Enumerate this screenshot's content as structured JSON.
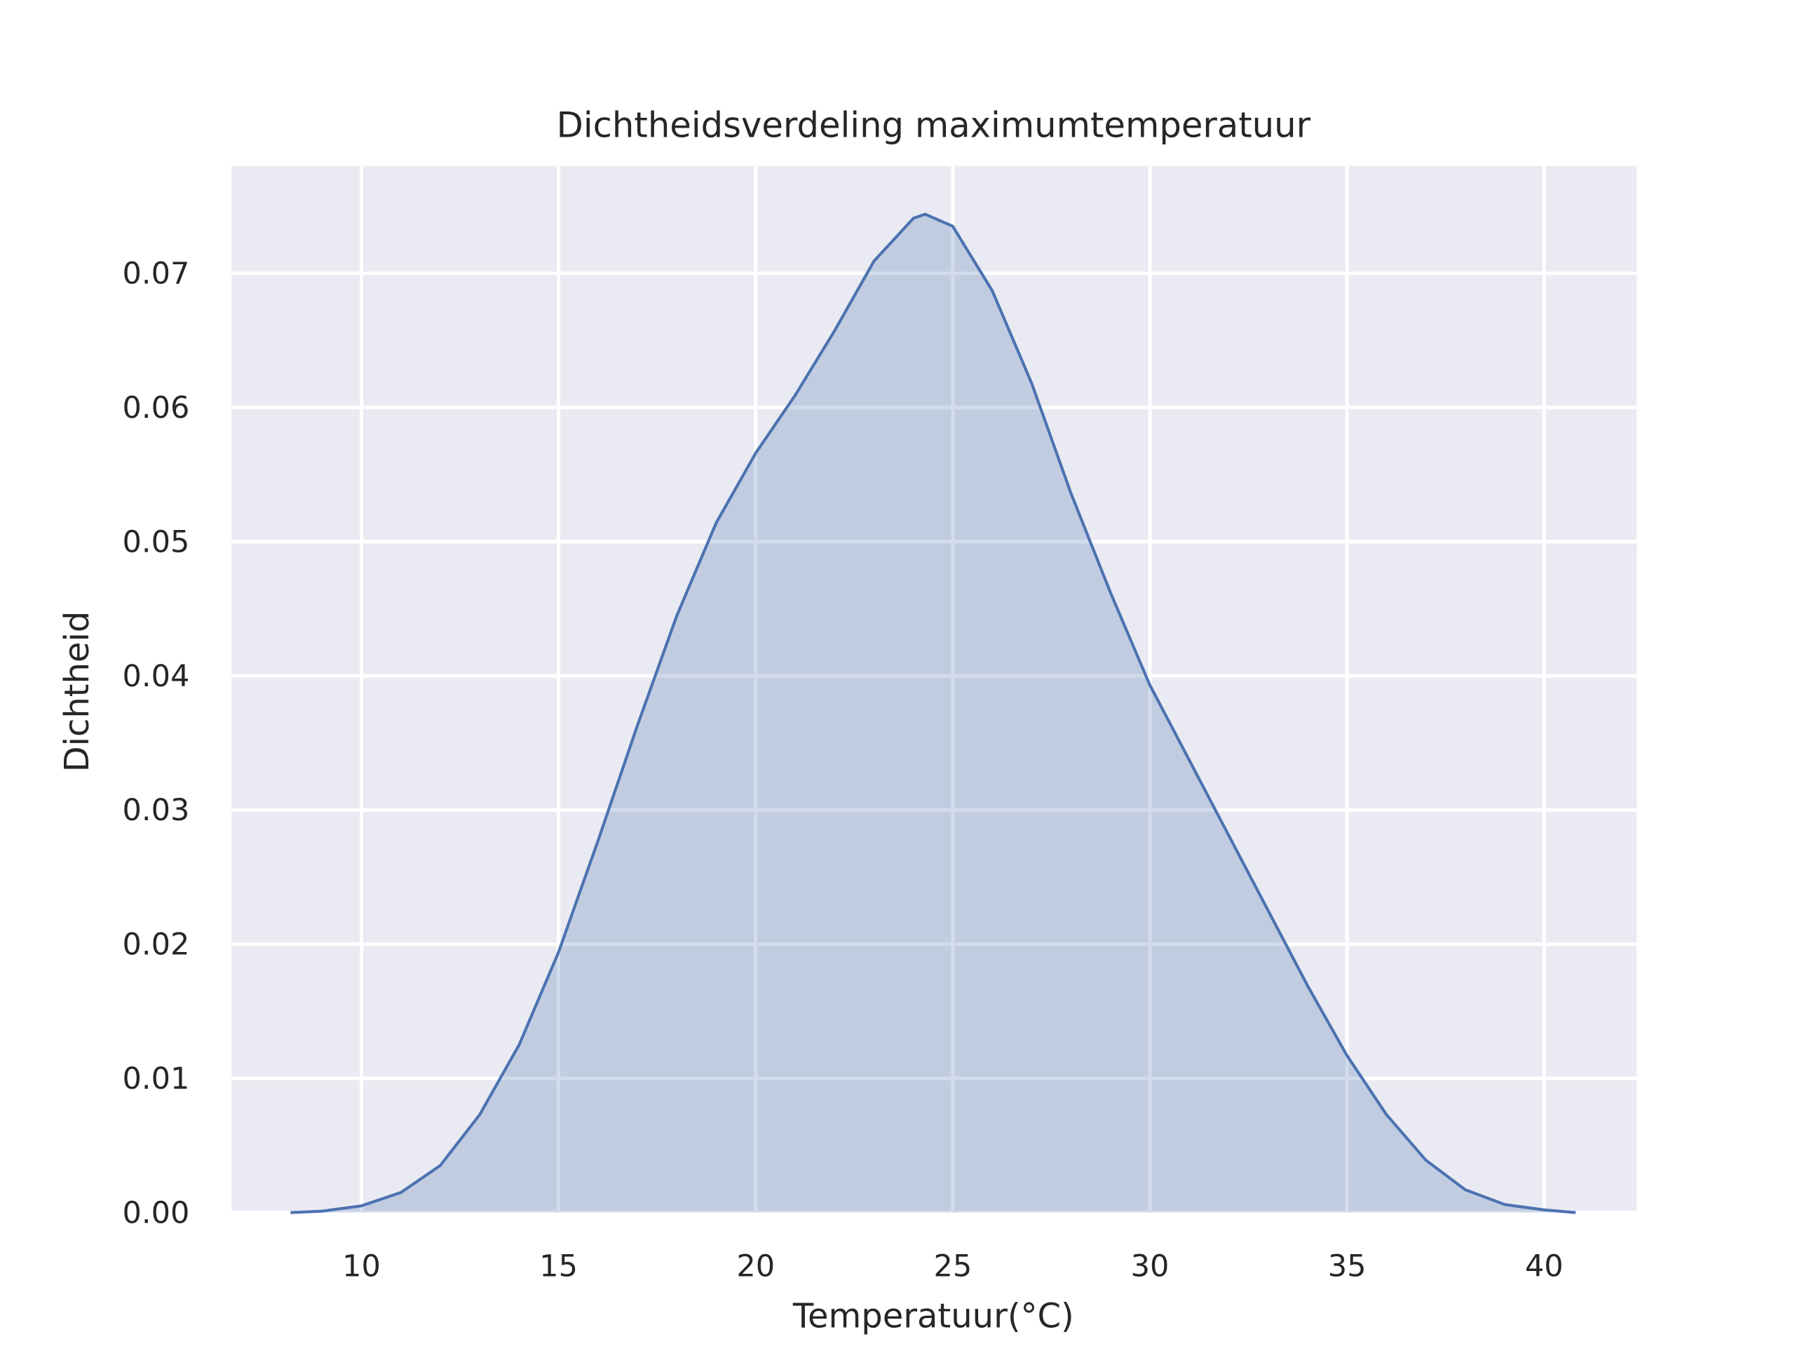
{
  "chart_data": {
    "type": "kde",
    "title": "Dichtheidsverdeling maximumtemperatuur",
    "x_label": "Temperatuur(°C)",
    "y_label": "Dichtheid",
    "x": [
      8.2,
      9,
      10,
      11,
      12,
      13,
      14,
      15,
      16,
      17,
      18,
      19,
      20,
      21,
      22,
      23,
      24,
      24.3,
      25,
      26,
      27,
      28,
      29,
      30,
      31,
      32,
      33,
      34,
      35,
      36,
      37,
      38,
      39,
      40,
      40.8
    ],
    "values": [
      0,
      0.0001,
      0.0005,
      0.0015,
      0.0035,
      0.0073,
      0.0125,
      0.0194,
      0.0277,
      0.0363,
      0.0445,
      0.0514,
      0.0566,
      0.0609,
      0.0657,
      0.0709,
      0.0741,
      0.0744,
      0.0735,
      0.0687,
      0.0618,
      0.0536,
      0.0462,
      0.0393,
      0.0337,
      0.0281,
      0.0225,
      0.0169,
      0.0117,
      0.0073,
      0.0039,
      0.0017,
      0.0006,
      0.0002,
      0
    ],
    "color": "#4c72b0",
    "xlim": [
      6.7,
      42.35
    ],
    "ylim": [
      0,
      0.078
    ],
    "xticks": [
      10,
      15,
      20,
      25,
      30,
      35,
      40
    ],
    "yticks": [
      {
        "value": 0,
        "label": "0.00"
      },
      0.01,
      0.02,
      0.03,
      0.04,
      0.05,
      0.06,
      0.07
    ],
    "grid": true
  }
}
